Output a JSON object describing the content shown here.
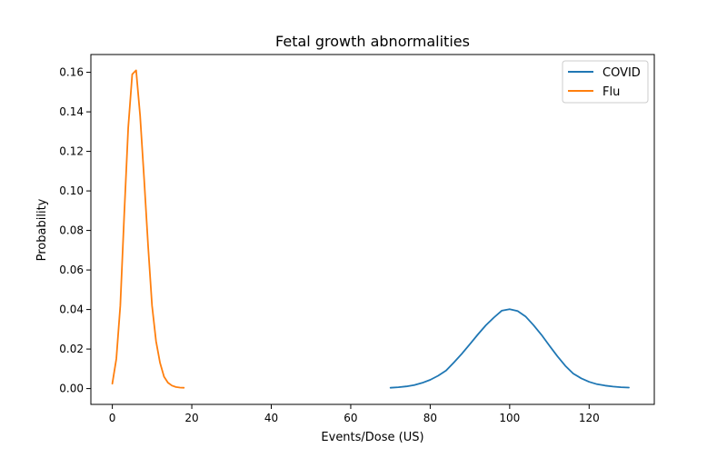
{
  "chart_data": {
    "type": "line",
    "title": "Fetal growth abnormalities",
    "xlabel": "Events/Dose (US)",
    "ylabel": "Probability",
    "xlim": [
      -5.4,
      136.4
    ],
    "ylim": [
      -0.008,
      0.169
    ],
    "xticks": [
      0,
      20,
      40,
      60,
      80,
      100,
      120
    ],
    "yticks": [
      0.0,
      0.02,
      0.04,
      0.06,
      0.08,
      0.1,
      0.12,
      0.14,
      0.16
    ],
    "xtick_labels": [
      "0",
      "20",
      "40",
      "60",
      "80",
      "100",
      "120"
    ],
    "ytick_labels": [
      "0.00",
      "0.02",
      "0.04",
      "0.06",
      "0.08",
      "0.10",
      "0.12",
      "0.14",
      "0.16"
    ],
    "grid": false,
    "legend_position": "top-right",
    "series": [
      {
        "name": "COVID",
        "color": "#1f77b4",
        "x": [
          70,
          72,
          74,
          76,
          78,
          80,
          82,
          84,
          86,
          88,
          90,
          92,
          94,
          96,
          98,
          100,
          102,
          104,
          106,
          108,
          110,
          112,
          114,
          116,
          118,
          120,
          122,
          124,
          126,
          128,
          130
        ],
        "y": [
          0.0004,
          0.0007,
          0.0011,
          0.0018,
          0.0029,
          0.0044,
          0.0065,
          0.0091,
          0.0133,
          0.0177,
          0.0225,
          0.0274,
          0.032,
          0.0359,
          0.0394,
          0.0402,
          0.0392,
          0.0365,
          0.0321,
          0.0272,
          0.0217,
          0.0164,
          0.0115,
          0.0076,
          0.0052,
          0.0034,
          0.0022,
          0.0015,
          0.001,
          0.0007,
          0.0005
        ]
      },
      {
        "name": "Flu",
        "color": "#ff7f0e",
        "x": [
          0,
          1,
          2,
          3,
          4,
          5,
          6,
          7,
          8,
          9,
          10,
          11,
          12,
          13,
          14,
          15,
          16,
          17,
          18
        ],
        "y": [
          0.0025,
          0.015,
          0.042,
          0.088,
          0.132,
          0.159,
          0.161,
          0.138,
          0.106,
          0.072,
          0.042,
          0.024,
          0.013,
          0.006,
          0.003,
          0.0015,
          0.0008,
          0.0005,
          0.0004
        ]
      }
    ]
  }
}
